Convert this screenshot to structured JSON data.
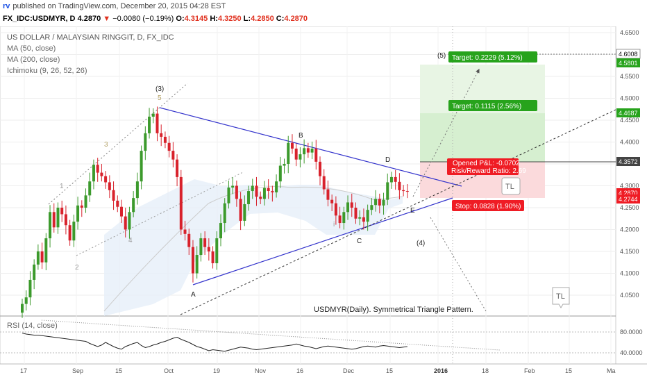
{
  "header": {
    "logo": "rv",
    "published": "published on TradingView.com, December 20, 2015 04:28 EST",
    "symbol": "FX_IDC:USDMYR, D",
    "last": "4.2870",
    "change_arrow": "▼",
    "change": "−0.0080 (−0.19%)",
    "o_label": "O:",
    "o_value": "4.3145",
    "h_label": "H:",
    "h_value": "4.3250",
    "l_label": "L:",
    "l_value": "4.2850",
    "c_label": "C:",
    "c_value": "4.2870"
  },
  "legend": {
    "title": "US DOLLAR / MALAYSIAN RINGGIT, D, FX_IDC",
    "items": [
      "MA (50, close)",
      "MA (200, close)",
      "Ichimoku (9, 26, 52, 26)"
    ]
  },
  "rsi_label": "RSI (14, close)",
  "caption": "USDMYR(Daily). Symmetrical Triangle Pattern.",
  "colors": {
    "up": "#3c9a2c",
    "down": "#d8222c",
    "triangle": "#3333cc",
    "target_bg": "#d9f0d4",
    "stop_bg": "#f8d2d4",
    "green_label": "#27a31c",
    "red_label": "#ef1c24"
  },
  "labels": {
    "wave3": "(3)",
    "wave4": "(4)",
    "wave5": "(5)",
    "A": "A",
    "B": "B",
    "C": "C",
    "D": "D",
    "E": "E",
    "m1": "1",
    "m2": "2",
    "m3": "3",
    "m4": "4",
    "m5": "5",
    "mi": "i",
    "tl": "TL"
  },
  "position": {
    "target2": "Target: 0.2229 (5.12%)",
    "target1": "Target: 0.1115 (2.56%)",
    "pnl": "Opened P&L: -0.0702",
    "rr": "Risk/Reward Ratio: 2.69",
    "stop": "Stop: 0.0828 (1.90%)"
  },
  "price_tags": {
    "p1": "4.6008",
    "p2": "4.5801",
    "p3": "4.4687",
    "p4": "4.3572",
    "p5": "4.2870",
    "p6": "4.2744"
  },
  "chart_data": {
    "type": "candlestick",
    "y_ticks": [
      "4.6500",
      "4.6000",
      "4.5500",
      "4.5000",
      "4.4500",
      "4.4000",
      "4.3500",
      "4.3000",
      "4.2500",
      "4.2000",
      "4.1500",
      "4.1000",
      "4.0500"
    ],
    "y_tick_values": [
      4.65,
      4.6,
      4.55,
      4.5,
      4.45,
      4.4,
      4.35,
      4.3,
      4.25,
      4.2,
      4.15,
      4.1,
      4.05
    ],
    "x_ticks": [
      "17",
      "Sep",
      "15",
      "Oct",
      "19",
      "Nov",
      "16",
      "Dec",
      "15",
      "2016",
      "18",
      "Feb",
      "15",
      "Ma"
    ],
    "rsi_ticks": [
      "80.0000",
      "40.0000"
    ],
    "rsi_tick_values": [
      80,
      40
    ],
    "closes": [
      4.03,
      4.045,
      4.085,
      4.12,
      4.15,
      4.125,
      4.18,
      4.24,
      4.205,
      4.25,
      4.235,
      4.21,
      4.175,
      4.218,
      4.255,
      4.25,
      4.278,
      4.31,
      4.348,
      4.33,
      4.322,
      4.308,
      4.29,
      4.266,
      4.252,
      4.23,
      4.2,
      4.24,
      4.272,
      4.31,
      4.38,
      4.42,
      4.458,
      4.465,
      4.42,
      4.412,
      4.398,
      4.38,
      4.36,
      4.32,
      4.2,
      4.19,
      4.16,
      4.1,
      4.142,
      4.18,
      4.16,
      4.15,
      4.123,
      4.18,
      4.215,
      4.26,
      4.296,
      4.3,
      4.27,
      4.22,
      4.258,
      4.288,
      4.3,
      4.275,
      4.27,
      4.295,
      4.288,
      4.285,
      4.31,
      4.346,
      4.35,
      4.398,
      4.385,
      4.36,
      4.372,
      4.386,
      4.376,
      4.385,
      4.355,
      4.322,
      4.292,
      4.268,
      4.26,
      4.232,
      4.215,
      4.24,
      4.262,
      4.25,
      4.225,
      4.228,
      4.218,
      4.245,
      4.256,
      4.27,
      4.255,
      4.268,
      4.308,
      4.32,
      4.309,
      4.29,
      4.288,
      4.287
    ],
    "rsi": [
      78,
      76,
      75,
      74,
      74,
      73,
      72,
      71,
      70,
      69,
      68,
      67,
      66,
      65,
      64,
      63,
      62,
      58,
      55,
      52,
      55,
      60,
      56,
      52,
      49,
      47,
      52,
      55,
      58,
      60,
      54,
      50,
      52,
      55,
      57,
      60,
      62,
      65,
      68,
      70,
      66,
      63,
      60,
      56,
      52,
      50,
      47,
      44,
      46,
      45,
      44,
      43,
      45,
      47,
      49,
      51,
      50,
      49,
      47,
      46,
      47,
      48,
      49,
      50,
      51,
      52,
      53,
      54,
      55,
      57,
      55,
      53,
      52,
      50,
      48,
      50,
      52,
      53,
      52,
      51,
      50,
      49,
      48,
      47,
      48,
      50,
      52,
      53,
      52,
      51,
      53,
      54,
      53,
      52,
      51,
      50,
      51,
      52
    ]
  }
}
